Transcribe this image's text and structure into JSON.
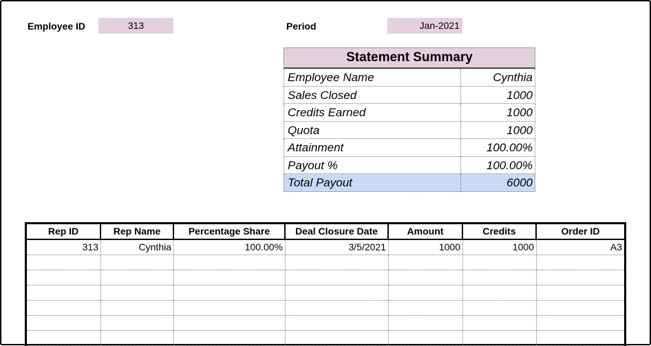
{
  "header": {
    "employee_id_label": "Employee ID",
    "employee_id_value": "313",
    "period_label": "Period",
    "period_value": "Jan-2021"
  },
  "summary": {
    "title": "Statement Summary",
    "rows": [
      {
        "label": "Employee Name",
        "value": "Cynthia"
      },
      {
        "label": "Sales Closed",
        "value": "1000"
      },
      {
        "label": "Credits Earned",
        "value": "1000"
      },
      {
        "label": "Quota",
        "value": "1000"
      },
      {
        "label": "Attainment",
        "value": "100.00%"
      },
      {
        "label": "Payout %",
        "value": "100.00%"
      }
    ],
    "total": {
      "label": "Total Payout",
      "value": "6000"
    }
  },
  "table": {
    "columns": [
      "Rep ID",
      "Rep Name",
      "Percentage Share",
      "Deal Closure Date",
      "Amount",
      "Credits",
      "Order ID"
    ],
    "rows": [
      [
        "313",
        "Cynthia",
        "100.00%",
        "3/5/2021",
        "1000",
        "1000",
        "A3"
      ],
      [
        "",
        "",
        "",
        "",
        "",
        "",
        ""
      ],
      [
        "",
        "",
        "",
        "",
        "",
        "",
        ""
      ],
      [
        "",
        "",
        "",
        "",
        "",
        "",
        ""
      ],
      [
        "",
        "",
        "",
        "",
        "",
        "",
        ""
      ],
      [
        "",
        "",
        "",
        "",
        "",
        "",
        ""
      ],
      [
        "",
        "",
        "",
        "",
        "",
        "",
        ""
      ]
    ]
  },
  "colors": {
    "header_fill": "#e4d1dc",
    "total_fill": "#c9daf7"
  }
}
